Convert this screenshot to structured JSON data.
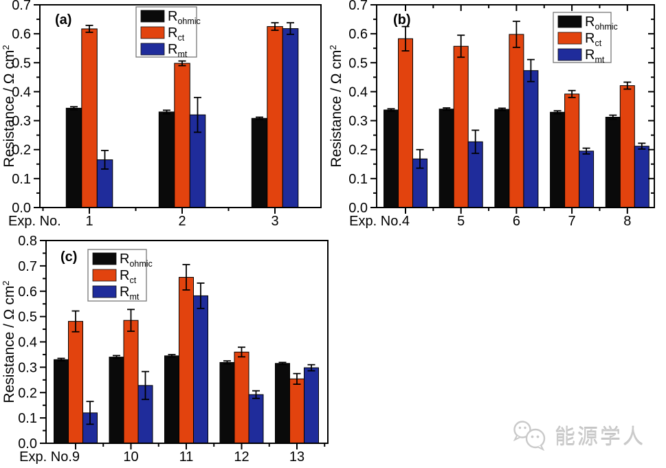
{
  "figure": {
    "background": "#ffffff"
  },
  "watermark": {
    "text": "能源学人",
    "icon": "wechat-logo-icon",
    "color": "#c9c9c9"
  },
  "palette": {
    "r_ohmic": "#0a0a0a",
    "r_ct": "#e2430e",
    "r_mt": "#1f2c9b",
    "axis": "#000000"
  },
  "chart_data": [
    {
      "id": "a",
      "type": "bar",
      "panel_label": "(a)",
      "ylabel": "Resistance / Ω cm²",
      "ylabel_base": "Resistance / Ω cm",
      "ylabel_sup": "2",
      "x_prefix": "Exp. No.",
      "prefix_attached": false,
      "categories": [
        "1",
        "2",
        "3"
      ],
      "ylim": [
        0,
        0.7
      ],
      "ytick_step": 0.1,
      "yticks": [
        "0.0",
        "0.1",
        "0.2",
        "0.3",
        "0.4",
        "0.5",
        "0.6",
        "0.7"
      ],
      "grid": false,
      "legend_position": "top-center",
      "error_bars": true,
      "series": [
        {
          "name": "R_ohmic",
          "label": "R",
          "label_sub": "ohmic",
          "color": "#0a0a0a",
          "values": [
            0.343,
            0.33,
            0.308
          ],
          "errors": [
            0.005,
            0.006,
            0.004
          ]
        },
        {
          "name": "R_ct",
          "label": "R",
          "label_sub": "ct",
          "color": "#e2430e",
          "values": [
            0.617,
            0.498,
            0.625
          ],
          "errors": [
            0.012,
            0.008,
            0.013
          ]
        },
        {
          "name": "R_mt",
          "label": "R",
          "label_sub": "mt",
          "color": "#1f2c9b",
          "values": [
            0.165,
            0.32,
            0.618
          ],
          "errors": [
            0.032,
            0.06,
            0.02
          ]
        }
      ]
    },
    {
      "id": "b",
      "type": "bar",
      "panel_label": "(b)",
      "ylabel": "Resistance / Ω cm²",
      "ylabel_base": "Resistance / Ω cm",
      "ylabel_sup": "2",
      "x_prefix": "Exp. No.",
      "prefix_attached": true,
      "categories": [
        "4",
        "5",
        "6",
        "7",
        "8"
      ],
      "ylim": [
        0,
        0.7
      ],
      "ytick_step": 0.1,
      "yticks": [
        "0.0",
        "0.1",
        "0.2",
        "0.3",
        "0.4",
        "0.5",
        "0.6",
        "0.7"
      ],
      "grid": false,
      "legend_position": "top-right",
      "error_bars": true,
      "series": [
        {
          "name": "R_ohmic",
          "label": "R",
          "label_sub": "ohmic",
          "color": "#0a0a0a",
          "values": [
            0.337,
            0.34,
            0.339,
            0.329,
            0.312
          ],
          "errors": [
            0.004,
            0.004,
            0.004,
            0.005,
            0.007
          ]
        },
        {
          "name": "R_ct",
          "label": "R",
          "label_sub": "ct",
          "color": "#e2430e",
          "values": [
            0.583,
            0.557,
            0.598,
            0.392,
            0.421
          ],
          "errors": [
            0.042,
            0.038,
            0.045,
            0.012,
            0.012
          ]
        },
        {
          "name": "R_mt",
          "label": "R",
          "label_sub": "mt",
          "color": "#1f2c9b",
          "values": [
            0.168,
            0.227,
            0.473,
            0.195,
            0.212
          ],
          "errors": [
            0.032,
            0.04,
            0.038,
            0.01,
            0.01
          ]
        }
      ]
    },
    {
      "id": "c",
      "type": "bar",
      "panel_label": "(c)",
      "ylabel": "Resistance / Ω cm²",
      "ylabel_base": "Resistance / Ω cm",
      "ylabel_sup": "2",
      "x_prefix": "Exp. No.",
      "prefix_attached": true,
      "categories": [
        "9",
        "10",
        "11",
        "12",
        "13"
      ],
      "ylim": [
        0,
        0.8
      ],
      "ytick_step": 0.1,
      "yticks": [
        "0.0",
        "0.1",
        "0.2",
        "0.3",
        "0.4",
        "0.5",
        "0.6",
        "0.7",
        "0.8"
      ],
      "grid": false,
      "legend_position": "top-left",
      "error_bars": true,
      "series": [
        {
          "name": "R_ohmic",
          "label": "R",
          "label_sub": "ohmic",
          "color": "#0a0a0a",
          "values": [
            0.33,
            0.34,
            0.345,
            0.319,
            0.315
          ],
          "errors": [
            0.005,
            0.006,
            0.005,
            0.006,
            0.004
          ]
        },
        {
          "name": "R_ct",
          "label": "R",
          "label_sub": "ct",
          "color": "#e2430e",
          "values": [
            0.481,
            0.485,
            0.655,
            0.36,
            0.254
          ],
          "errors": [
            0.041,
            0.043,
            0.05,
            0.019,
            0.021
          ]
        },
        {
          "name": "R_mt",
          "label": "R",
          "label_sub": "mt",
          "color": "#1f2c9b",
          "values": [
            0.12,
            0.228,
            0.582,
            0.192,
            0.298
          ],
          "errors": [
            0.045,
            0.055,
            0.05,
            0.015,
            0.012
          ]
        }
      ]
    }
  ]
}
